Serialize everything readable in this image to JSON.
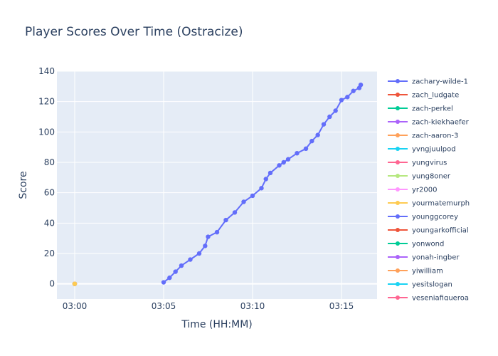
{
  "chart_data": {
    "type": "line",
    "title": "Player Scores Over Time (Ostracize)",
    "xlabel": "Time (HH:MM)",
    "ylabel": "Score",
    "xlim": [
      "02:59:00",
      "03:17:00"
    ],
    "ylim": [
      -10,
      140
    ],
    "x_ticks": [
      "03:00",
      "03:05",
      "03:10",
      "03:15"
    ],
    "y_ticks": [
      0,
      20,
      40,
      60,
      80,
      100,
      120,
      140
    ],
    "grid": true,
    "legend_position": "right",
    "series": [
      {
        "name": "zachary-wilde-1",
        "color": "#636efa",
        "x": [
          "03:05:00",
          "03:05:20",
          "03:05:40",
          "03:06:00",
          "03:06:30",
          "03:07:00",
          "03:07:20",
          "03:07:30",
          "03:08:00",
          "03:08:30",
          "03:09:00",
          "03:09:30",
          "03:10:00",
          "03:10:30",
          "03:10:45",
          "03:11:00",
          "03:11:30",
          "03:11:45",
          "03:12:00",
          "03:12:30",
          "03:13:00",
          "03:13:20",
          "03:13:40",
          "03:14:00",
          "03:14:20",
          "03:14:40",
          "03:15:00",
          "03:15:20",
          "03:15:40",
          "03:16:00",
          "03:16:05"
        ],
        "y": [
          1,
          4,
          8,
          12,
          16,
          20,
          25,
          31,
          34,
          42,
          47,
          54,
          58,
          63,
          69,
          73,
          78,
          80,
          82,
          86,
          89,
          94,
          98,
          105,
          110,
          114,
          121,
          123,
          127,
          129,
          131
        ]
      },
      {
        "name": "zach_ludgate",
        "color": "#EF553B",
        "x": [
          "03:00:00"
        ],
        "y": [
          0
        ]
      },
      {
        "name": "zach-perkel",
        "color": "#00cc96",
        "x": [
          "03:00:00"
        ],
        "y": [
          0
        ]
      },
      {
        "name": "zach-kiekhaefer",
        "color": "#ab63fa",
        "x": [
          "03:00:00"
        ],
        "y": [
          0
        ]
      },
      {
        "name": "zach-aaron-3",
        "color": "#FFA15A",
        "x": [
          "03:00:00"
        ],
        "y": [
          0
        ]
      },
      {
        "name": "yvngjuulpod",
        "color": "#19d3f3",
        "x": [],
        "y": []
      },
      {
        "name": "yungvirus",
        "color": "#FF6692",
        "x": [],
        "y": []
      },
      {
        "name": "yung8oner",
        "color": "#B6E880",
        "x": [],
        "y": []
      },
      {
        "name": "yr2000",
        "color": "#FF97FF",
        "x": [],
        "y": []
      },
      {
        "name": "yourmatemurph",
        "color": "#FECB52",
        "x": [
          "03:00:00"
        ],
        "y": [
          0
        ]
      },
      {
        "name": "younggcorey",
        "color": "#636efa",
        "x": [],
        "y": []
      },
      {
        "name": "youngarkofficial",
        "color": "#EF553B",
        "x": [],
        "y": []
      },
      {
        "name": "yonwond",
        "color": "#00cc96",
        "x": [],
        "y": []
      },
      {
        "name": "yonah-ingber",
        "color": "#ab63fa",
        "x": [],
        "y": []
      },
      {
        "name": "yiwilliam",
        "color": "#FFA15A",
        "x": [],
        "y": []
      },
      {
        "name": "yesitslogan",
        "color": "#19d3f3",
        "x": [],
        "y": []
      },
      {
        "name": "yeseniafigueroa",
        "color": "#FF6692",
        "x": [],
        "y": []
      }
    ]
  }
}
